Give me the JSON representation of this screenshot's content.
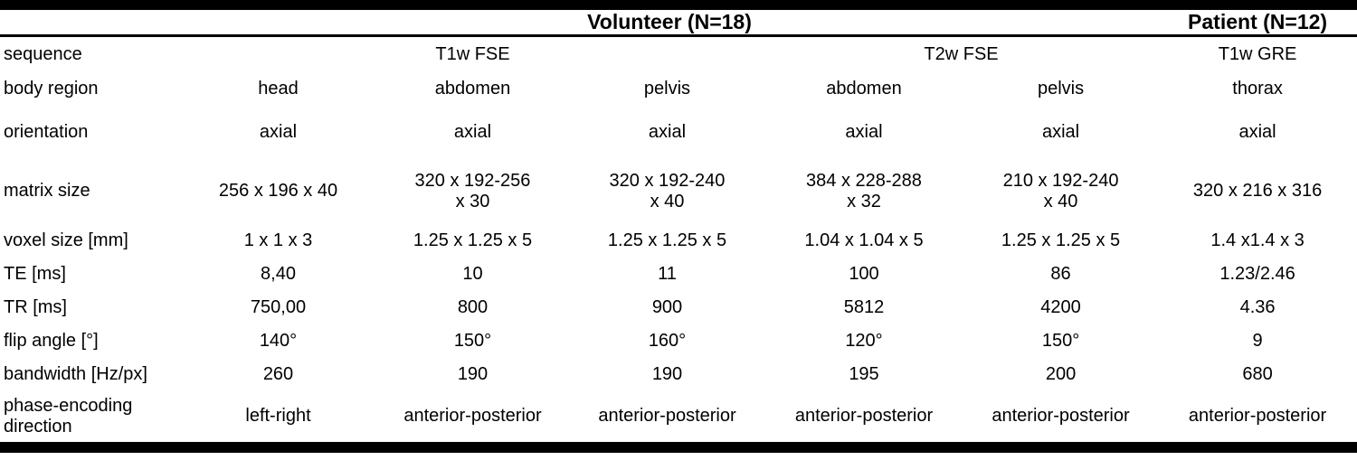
{
  "table": {
    "group_header": {
      "volunteer": "Volunteer (N=18)",
      "patient": "Patient (N=12)"
    },
    "sequence_row": {
      "label": "sequence",
      "volunteer_t1w": "T1w FSE",
      "volunteer_t2w": "T2w FSE",
      "patient": "T1w GRE"
    },
    "rows": [
      {
        "label": "body region",
        "values": [
          "head",
          "abdomen",
          "pelvis",
          "abdomen",
          "pelvis",
          "thorax"
        ]
      },
      {
        "label": "orientation",
        "values": [
          "axial",
          "axial",
          "axial",
          "axial",
          "axial",
          "axial"
        ]
      },
      {
        "label": "matrix size",
        "values": [
          "256 x 196 x 40",
          "320 x 192-256\nx 30",
          "320 x 192-240\nx 40",
          "384 x 228-288\nx 32",
          "210 x 192-240\nx 40",
          "320 x 216 x 316"
        ]
      },
      {
        "label": "voxel size [mm]",
        "values": [
          "1 x 1 x 3",
          "1.25 x 1.25 x 5",
          "1.25 x 1.25 x 5",
          "1.04 x 1.04 x 5",
          "1.25 x 1.25 x 5",
          "1.4 x1.4 x 3"
        ]
      },
      {
        "label": "TE [ms]",
        "values": [
          "8,40",
          "10",
          "11",
          "100",
          "86",
          "1.23/2.46"
        ]
      },
      {
        "label": "TR [ms]",
        "values": [
          "750,00",
          "800",
          "900",
          "5812",
          "4200",
          "4.36"
        ]
      },
      {
        "label": "flip angle [°]",
        "values": [
          "140°",
          "150°",
          "160°",
          "120°",
          "150°",
          "9"
        ]
      },
      {
        "label": "bandwidth [Hz/px]",
        "values": [
          "260",
          "190",
          "190",
          "195",
          "200",
          "680"
        ]
      },
      {
        "label": "phase-encoding direction",
        "values": [
          "left-right",
          "anterior-posterior",
          "anterior-posterior",
          "anterior-posterior",
          "anterior-posterior",
          "anterior-posterior"
        ]
      }
    ],
    "colors": {
      "text": "#000000",
      "rule": "#000000",
      "background": "#ffffff"
    }
  }
}
